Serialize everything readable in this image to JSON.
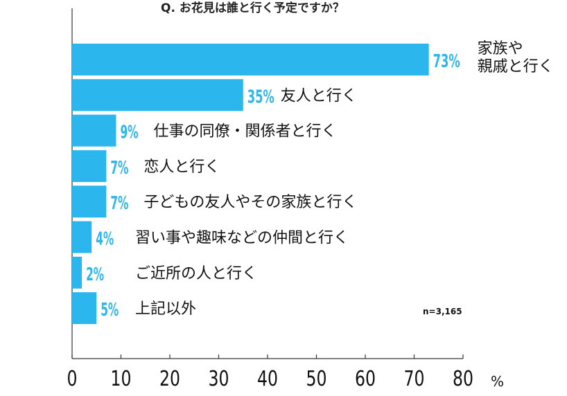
{
  "chart_data": {
    "type": "bar",
    "orientation": "horizontal",
    "title": "Q.  お花見は誰と行く予定ですか？",
    "categories": [
      [
        "家族や",
        "親戚と行く"
      ],
      [
        "友人と行く"
      ],
      [
        "仕事の同僚・関係者と行く"
      ],
      [
        "恋人と行く"
      ],
      [
        "子どもの友人やその家族と行く"
      ],
      [
        "習い事や趣味などの仲間と行く"
      ],
      [
        "ご近所の人と行く"
      ],
      [
        "上記以外"
      ]
    ],
    "values": [
      73,
      35,
      9,
      7,
      7,
      4,
      2,
      5
    ],
    "value_labels": [
      "73%",
      "35%",
      "9%",
      "7%",
      "7%",
      "4%",
      "2%",
      "5%"
    ],
    "xlim": [
      0,
      80
    ],
    "xticks": [
      "0",
      "10",
      "20",
      "30",
      "40",
      "50",
      "60",
      "70",
      "80"
    ],
    "xunit": "%",
    "note": "n=3,165",
    "bar_color": "#2bb7ee"
  }
}
